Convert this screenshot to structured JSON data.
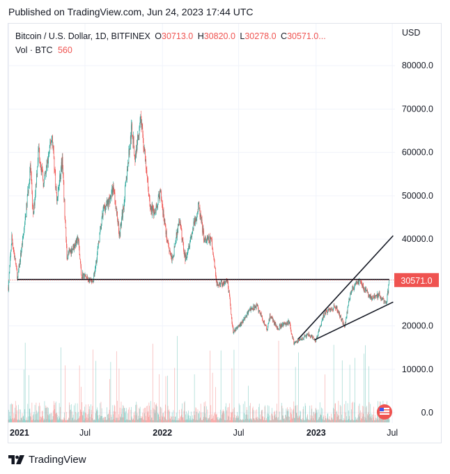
{
  "published": "Published on TradingView.com, Jun 24, 2023 17:44 UTC",
  "brand": "TradingView",
  "legend": {
    "symbol": "Bitcoin / U.S. Dollar, 1D, BITFINEX",
    "o_key": "O",
    "o_val": "30713.0",
    "h_key": "H",
    "h_val": "30820.0",
    "l_key": "L",
    "l_val": "30278.0",
    "c_key": "C",
    "c_val": "30571.0...",
    "vol_label": "Vol · BTC",
    "vol_val": "560"
  },
  "currency": "USD",
  "colors": {
    "up": "#26a69a",
    "down": "#ef5350",
    "line": "#131722",
    "grid": "#f0f3fa"
  },
  "chart_data": {
    "type": "candlestick",
    "ylim": [
      -7000,
      82000
    ],
    "yticks": [
      {
        "value": 80000,
        "label": "80000.0"
      },
      {
        "value": 70000,
        "label": "70000.0"
      },
      {
        "value": 60000,
        "label": "60000.0"
      },
      {
        "value": 50000,
        "label": "50000.0"
      },
      {
        "value": 40000,
        "label": "40000.0"
      },
      {
        "value": 30000,
        "label": "30000.0"
      },
      {
        "value": 20000,
        "label": "20000.0"
      },
      {
        "value": 10000,
        "label": "10000.0"
      },
      {
        "value": 0,
        "label": "0.0"
      }
    ],
    "xticks": [
      {
        "date": "2021-01-01",
        "label": "2021",
        "bold": true
      },
      {
        "date": "2021-07-01",
        "label": "Jul",
        "bold": false
      },
      {
        "date": "2022-01-01",
        "label": "2022",
        "bold": true
      },
      {
        "date": "2022-07-01",
        "label": "Jul",
        "bold": false
      },
      {
        "date": "2023-01-01",
        "label": "2023",
        "bold": true
      },
      {
        "date": "2023-07-01",
        "label": "Jul",
        "bold": false
      }
    ],
    "xlim": [
      "2020-12-31",
      "2023-07-04"
    ],
    "last_price": {
      "value": 30571.0,
      "label": "30571.0"
    },
    "price_path": [
      [
        "2020-12-31",
        28900
      ],
      [
        "2021-01-08",
        40500
      ],
      [
        "2021-01-22",
        31000
      ],
      [
        "2021-02-10",
        45000
      ],
      [
        "2021-02-21",
        57000
      ],
      [
        "2021-02-28",
        45000
      ],
      [
        "2021-03-13",
        61000
      ],
      [
        "2021-03-25",
        52500
      ],
      [
        "2021-04-14",
        64000
      ],
      [
        "2021-04-25",
        49000
      ],
      [
        "2021-05-08",
        58000
      ],
      [
        "2021-05-19",
        36000
      ],
      [
        "2021-06-15",
        40000
      ],
      [
        "2021-06-22",
        32000
      ],
      [
        "2021-07-20",
        29800
      ],
      [
        "2021-08-14",
        47000
      ],
      [
        "2021-08-28",
        49000
      ],
      [
        "2021-09-07",
        52000
      ],
      [
        "2021-09-21",
        41000
      ],
      [
        "2021-10-01",
        48000
      ],
      [
        "2021-10-20",
        66000
      ],
      [
        "2021-10-28",
        58500
      ],
      [
        "2021-11-10",
        68500
      ],
      [
        "2021-11-26",
        53500
      ],
      [
        "2021-12-04",
        47000
      ],
      [
        "2021-12-14",
        46000
      ],
      [
        "2021-12-27",
        51000
      ],
      [
        "2022-01-10",
        41000
      ],
      [
        "2022-01-24",
        35000
      ],
      [
        "2022-02-10",
        44500
      ],
      [
        "2022-02-24",
        35500
      ],
      [
        "2022-03-28",
        47500
      ],
      [
        "2022-04-11",
        39500
      ],
      [
        "2022-04-27",
        40000
      ],
      [
        "2022-05-10",
        29500
      ],
      [
        "2022-06-05",
        30000
      ],
      [
        "2022-06-18",
        18500
      ],
      [
        "2022-07-10",
        21000
      ],
      [
        "2022-07-30",
        24000
      ],
      [
        "2022-08-14",
        24500
      ],
      [
        "2022-09-07",
        19000
      ],
      [
        "2022-09-13",
        22500
      ],
      [
        "2022-10-01",
        19500
      ],
      [
        "2022-10-29",
        21000
      ],
      [
        "2022-11-09",
        16000
      ],
      [
        "2022-12-14",
        18000
      ],
      [
        "2022-12-31",
        16500
      ],
      [
        "2023-01-21",
        23000
      ],
      [
        "2023-02-16",
        24500
      ],
      [
        "2023-03-10",
        20000
      ],
      [
        "2023-03-24",
        28000
      ],
      [
        "2023-04-14",
        30500
      ],
      [
        "2023-04-26",
        28500
      ],
      [
        "2023-05-12",
        26300
      ],
      [
        "2023-06-01",
        27200
      ],
      [
        "2023-06-15",
        25000
      ],
      [
        "2023-06-19",
        26700
      ],
      [
        "2023-06-24",
        30571
      ]
    ],
    "drawings": [
      {
        "name": "horizontal-line",
        "points": [
          [
            "2021-01-21",
            30700
          ],
          [
            "2023-06-24",
            30700
          ]
        ]
      },
      {
        "name": "upper-trendline",
        "points": [
          [
            "2022-11-20",
            17000
          ],
          [
            "2023-07-03",
            40800
          ]
        ]
      },
      {
        "name": "lower-trendline",
        "points": [
          [
            "2022-12-29",
            16800
          ],
          [
            "2023-07-03",
            25500
          ]
        ]
      }
    ]
  }
}
